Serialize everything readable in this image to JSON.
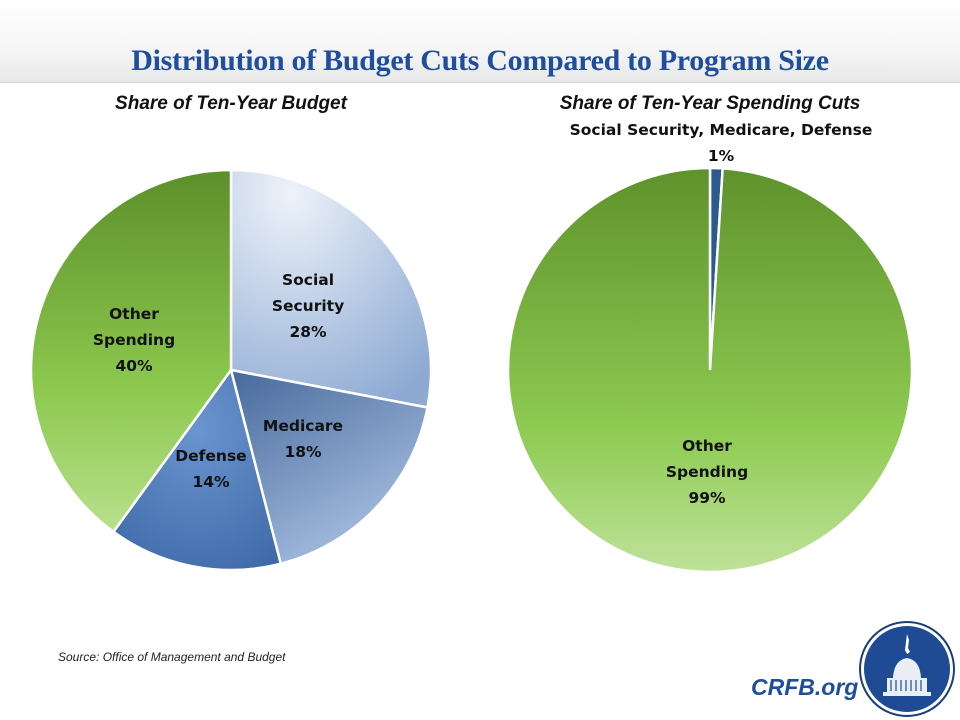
{
  "title": "Distribution of Budget Cuts Compared to Program Size",
  "source": "Source: Office of Management and Budget",
  "brand": "CRFB.org",
  "logo_icon": "capitol-dome-icon",
  "chart_data": [
    {
      "type": "pie",
      "title": "Share of Ten-Year Budget",
      "start": "12 o'clock, clockwise",
      "slices": [
        {
          "name": "Social Security",
          "value": 28,
          "label_lines": [
            "Social",
            "Security",
            "28%"
          ],
          "color": "#a7bfe0"
        },
        {
          "name": "Medicare",
          "value": 18,
          "label_lines": [
            "Medicare",
            "18%"
          ],
          "color": "#5c7fb0"
        },
        {
          "name": "Defense",
          "value": 14,
          "label_lines": [
            "Defense",
            "14%"
          ],
          "color": "#4a78b8"
        },
        {
          "name": "Other Spending",
          "value": 40,
          "label_lines": [
            "Other",
            "Spending",
            "40%"
          ],
          "color": "#7fb842"
        }
      ]
    },
    {
      "type": "pie",
      "title": "Share of Ten-Year Spending Cuts",
      "start": "12 o'clock, clockwise",
      "slices": [
        {
          "name": "Social Security, Medicare, Defense",
          "value": 1,
          "label_lines": [
            "Social Security, Medicare, Defense",
            "1%"
          ],
          "color": "#2b5a8c"
        },
        {
          "name": "Other Spending",
          "value": 99,
          "label_lines": [
            "Other",
            "Spending",
            "99%"
          ],
          "color": "#7fb842"
        }
      ]
    }
  ]
}
